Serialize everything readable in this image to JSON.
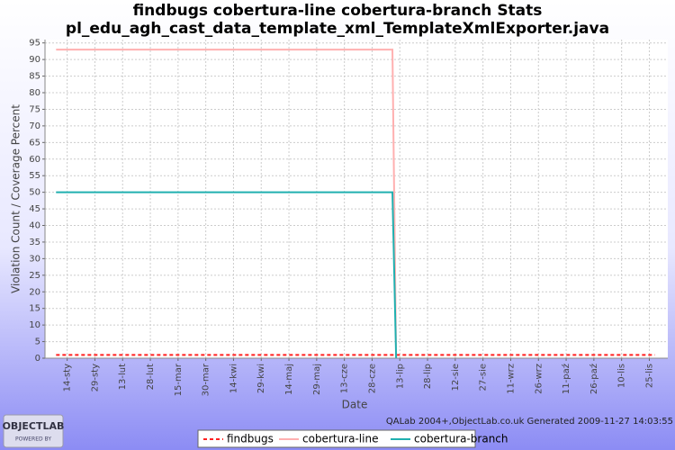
{
  "chart_data": {
    "type": "line",
    "title": "findbugs cobertura-line cobertura-branch  Stats",
    "subtitle": "pl_edu_agh_cast_data_template_xml_TemplateXmlExporter.java",
    "x_label": "Date",
    "y_label": "Violation Count / Coverage Percent",
    "footer": "QALab 2004+,ObjectLab.co.uk Generated 2009-11-27 14:03:55",
    "logo": {
      "name": "OBJECTLAB",
      "tagline": "POWERED BY"
    },
    "x": [
      8,
      190,
      192,
      332
    ],
    "series": [
      {
        "name": "findbugs",
        "color": "#ff2020",
        "values": [
          1,
          1,
          1,
          1
        ]
      },
      {
        "name": "cobertura-line",
        "color": "#ffb0b0",
        "values": [
          93,
          93,
          0,
          null
        ]
      },
      {
        "name": "cobertura-branch",
        "color": "#20b0b0",
        "values": [
          50,
          50,
          0,
          null
        ]
      }
    ],
    "xlim": [
      2,
      339
    ],
    "xticks": [
      {
        "value": 14,
        "label": "14-sty"
      },
      {
        "value": 29,
        "label": "29-sty"
      },
      {
        "value": 44,
        "label": "13-lut"
      },
      {
        "value": 59,
        "label": "28-lut"
      },
      {
        "value": 74,
        "label": "15-mar"
      },
      {
        "value": 89,
        "label": "30-mar"
      },
      {
        "value": 104,
        "label": "14-kwi"
      },
      {
        "value": 119,
        "label": "29-kwi"
      },
      {
        "value": 134,
        "label": "14-maj"
      },
      {
        "value": 149,
        "label": "29-maj"
      },
      {
        "value": 164,
        "label": "13-cze"
      },
      {
        "value": 179,
        "label": "28-cze"
      },
      {
        "value": 194,
        "label": "13-lip"
      },
      {
        "value": 209,
        "label": "28-lip"
      },
      {
        "value": 224,
        "label": "12-sie"
      },
      {
        "value": 239,
        "label": "27-sie"
      },
      {
        "value": 254,
        "label": "11-wrz"
      },
      {
        "value": 269,
        "label": "26-wrz"
      },
      {
        "value": 284,
        "label": "11-paź"
      },
      {
        "value": 299,
        "label": "26-paź"
      },
      {
        "value": 314,
        "label": "10-lis"
      },
      {
        "value": 329,
        "label": "25-lis"
      }
    ],
    "ylim": [
      0,
      96
    ],
    "yticks": [
      0,
      5,
      10,
      15,
      20,
      25,
      30,
      35,
      40,
      45,
      50,
      55,
      60,
      65,
      70,
      75,
      80,
      85,
      90,
      95
    ],
    "grid": true,
    "legend": "bottom"
  }
}
